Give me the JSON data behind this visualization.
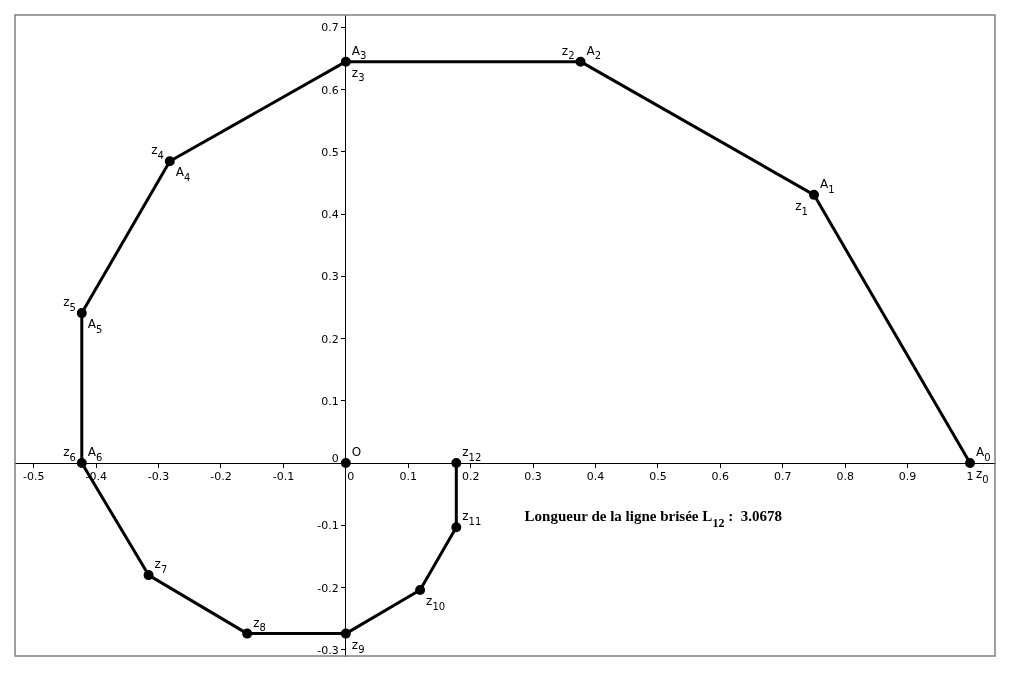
{
  "chart_data": {
    "type": "line",
    "series": [
      {
        "type": "line",
        "color": "#000000",
        "x": [
          1,
          0.75,
          0.376,
          0,
          -0.282,
          -0.423,
          -0.423,
          -0.316,
          -0.158,
          0,
          0.119,
          0.177,
          0.177
        ],
        "values": [
          0,
          0.431,
          0.645,
          0.645,
          0.485,
          0.241,
          0,
          -0.18,
          -0.274,
          -0.274,
          -0.204,
          -0.103,
          0
        ]
      },
      {
        "type": "scatter",
        "color": "#000000",
        "x": [
          0
        ],
        "values": [
          0
        ]
      }
    ],
    "marker": "circle",
    "line_style": "solid",
    "xlim": [
      -0.53,
      1.04
    ],
    "xticks": [
      -0.5,
      -0.4,
      -0.3,
      -0.2,
      -0.1,
      0,
      0.1,
      0.2,
      0.3,
      0.4,
      0.5,
      0.6,
      0.7,
      0.8,
      0.9,
      1
    ],
    "ylim": [
      -0.31,
      0.72
    ],
    "yticks": [
      -0.3,
      -0.2,
      -0.1,
      0,
      0.1,
      0.2,
      0.3,
      0.4,
      0.5,
      0.6,
      0.7
    ],
    "grid": false,
    "legend": false,
    "annotations": [
      {
        "text": "A$_{0}$",
        "x": 1,
        "y": 0
      },
      {
        "text": "A$_{1}$",
        "x": 0.75,
        "y": 0.431
      },
      {
        "text": "A$_{2}$",
        "x": 0.376,
        "y": 0.645
      },
      {
        "text": "A$_{3}$",
        "x": 0,
        "y": 0.645
      },
      {
        "text": "A$_{4}$",
        "x": -0.282,
        "y": 0.485
      },
      {
        "text": "A$_{5}$",
        "x": -0.423,
        "y": 0.241
      },
      {
        "text": "A$_{6}$",
        "x": -0.423,
        "y": 0
      },
      {
        "text": "z$_{0}$",
        "x": 1,
        "y": 0
      },
      {
        "text": "z$_{1}$",
        "x": 0.75,
        "y": 0.431
      },
      {
        "text": "z$_{2}$",
        "x": 0.376,
        "y": 0.645
      },
      {
        "text": "z$_{3}$",
        "x": 0,
        "y": 0.645
      },
      {
        "text": "z$_{4}$",
        "x": -0.282,
        "y": 0.485
      },
      {
        "text": "z$_{5}$",
        "x": -0.423,
        "y": 0.241
      },
      {
        "text": "z$_{6}$",
        "x": -0.423,
        "y": 0
      },
      {
        "text": "z$_{7}$",
        "x": -0.316,
        "y": -0.18
      },
      {
        "text": "z$_{8}$",
        "x": -0.158,
        "y": -0.274
      },
      {
        "text": "z$_{9}$",
        "x": 0,
        "y": -0.274
      },
      {
        "text": "z$_{10}$",
        "x": 0.119,
        "y": -0.204
      },
      {
        "text": "z$_{11}$",
        "x": 0.177,
        "y": -0.103
      },
      {
        "text": "z$_{12}$",
        "x": 0.177,
        "y": 0
      },
      {
        "text": "O",
        "x": 0,
        "y": 0
      },
      "Longueur de la ligne brisée L$_{12}$ :  3.0678"
    ]
  }
}
